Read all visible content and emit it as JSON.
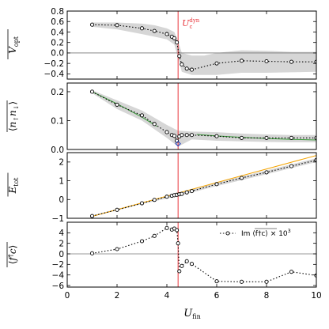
{
  "chart_data": [
    {
      "type": "line",
      "panel": "V_opt",
      "ylabel": "V_opt",
      "ylim": [
        -0.5,
        0.8
      ],
      "yticks": [
        -0.4,
        -0.2,
        0.0,
        0.2,
        0.4,
        0.6,
        0.8
      ],
      "hline": 0.0,
      "x": [
        1,
        2,
        3,
        3.5,
        4.0,
        4.2,
        4.3,
        4.4,
        4.5,
        4.6,
        4.8,
        5.0,
        6.0,
        7.0,
        8.0,
        9.0,
        10.0
      ],
      "values": [
        0.54,
        0.53,
        0.47,
        0.42,
        0.36,
        0.31,
        0.28,
        0.2,
        -0.06,
        -0.22,
        -0.3,
        -0.32,
        -0.2,
        -0.15,
        -0.16,
        -0.17,
        -0.17
      ],
      "band_x": [
        1,
        2,
        3,
        3.5,
        4.0,
        4.3,
        4.45,
        4.6,
        5.0,
        5.5,
        6.0,
        7.0,
        8.0,
        9.0,
        10.0
      ],
      "band_upper": [
        0.58,
        0.58,
        0.56,
        0.53,
        0.47,
        0.4,
        0.22,
        0.0,
        -0.05,
        -0.05,
        0.0,
        0.05,
        0.04,
        0.02,
        0.02
      ],
      "band_lower": [
        0.5,
        0.45,
        0.36,
        0.31,
        0.26,
        0.16,
        -0.1,
        -0.36,
        -0.42,
        -0.42,
        -0.42,
        -0.38,
        -0.38,
        -0.37,
        -0.36
      ]
    },
    {
      "type": "line",
      "panel": "double_occupancy",
      "ylabel": "⟨n↑n↓⟩",
      "ylim": [
        0.0,
        0.23
      ],
      "yticks": [
        0.0,
        0.1,
        0.2
      ],
      "x": [
        1,
        2,
        3,
        3.5,
        4.0,
        4.2,
        4.3,
        4.4,
        4.5,
        4.6,
        4.8,
        5.0,
        6.0,
        7.0,
        8.0,
        9.0,
        10.0
      ],
      "values": [
        0.2,
        0.155,
        0.118,
        0.088,
        0.06,
        0.05,
        0.047,
        0.03,
        0.045,
        0.05,
        0.05,
        0.05,
        0.046,
        0.04,
        0.04,
        0.04,
        0.04
      ],
      "band_x": [
        1,
        2,
        3,
        4.0,
        4.45,
        5.0,
        6.0,
        7.0,
        8.0,
        9.0,
        10.0
      ],
      "band_upper": [
        0.205,
        0.17,
        0.135,
        0.085,
        0.065,
        0.062,
        0.06,
        0.055,
        0.052,
        0.05,
        0.05
      ],
      "band_lower": [
        0.195,
        0.14,
        0.1,
        0.04,
        0.01,
        0.035,
        0.03,
        0.028,
        0.026,
        0.025,
        0.025
      ],
      "green_segments": [
        {
          "x": [
            1,
            2,
            3,
            3.6
          ],
          "y": [
            0.2,
            0.158,
            0.112,
            0.08
          ]
        },
        {
          "x": [
            5.2,
            6,
            7,
            8,
            9,
            10
          ],
          "y": [
            0.052,
            0.047,
            0.042,
            0.038,
            0.035,
            0.033
          ]
        }
      ],
      "diamond": {
        "x": 4.45,
        "y": 0.02,
        "color": "#1f3fbf"
      }
    },
    {
      "type": "line",
      "panel": "E_tot",
      "ylabel": "E_tot",
      "ylim": [
        -1.0,
        2.5
      ],
      "yticks": [
        -1,
        0,
        1,
        2
      ],
      "x": [
        1,
        2,
        3,
        3.5,
        4.0,
        4.2,
        4.3,
        4.4,
        4.5,
        4.6,
        4.8,
        5.0,
        6.0,
        7.0,
        8.0,
        9.0,
        10.0
      ],
      "values": [
        -0.88,
        -0.55,
        -0.2,
        -0.02,
        0.15,
        0.2,
        0.23,
        0.25,
        0.28,
        0.3,
        0.38,
        0.45,
        0.82,
        1.15,
        1.45,
        1.78,
        2.1
      ],
      "band_x": [
        1,
        3,
        4.5,
        6,
        8,
        10
      ],
      "band_upper": [
        -0.85,
        -0.16,
        0.34,
        0.9,
        1.55,
        2.2
      ],
      "band_lower": [
        -0.91,
        -0.24,
        0.2,
        0.72,
        1.35,
        2.0
      ],
      "orange_line": {
        "x": [
          1,
          10
        ],
        "y": [
          -0.9,
          2.35
        ],
        "color": "#f4a300"
      }
    },
    {
      "type": "line",
      "panel": "im_fc",
      "ylabel": "⟨f†c⟩",
      "ylim": [
        -6.3,
        6.0
      ],
      "yticks": [
        -6,
        -4,
        -2,
        0,
        2,
        4
      ],
      "hline": 0.0,
      "legend": {
        "label_parts": [
          "Im ",
          "⟨f†c⟩",
          " × 10",
          "3"
        ],
        "position": "upper right"
      },
      "x": [
        1,
        2,
        3,
        3.5,
        4.0,
        4.2,
        4.3,
        4.4,
        4.45,
        4.5,
        4.6,
        4.8,
        5.0,
        6.0,
        7.0,
        8.0,
        9.0,
        10.0
      ],
      "values": [
        0.1,
        0.9,
        2.4,
        3.4,
        4.9,
        4.6,
        4.8,
        4.5,
        2.0,
        -3.3,
        -2.3,
        -1.4,
        -1.9,
        -5.2,
        -5.3,
        -5.3,
        -3.4,
        -4.1
      ]
    }
  ],
  "x_axis": {
    "label": "U_fin",
    "xlim": [
      0,
      10
    ],
    "xticks": [
      0,
      2,
      4,
      6,
      8,
      10
    ]
  },
  "critical_line": {
    "x": 4.45,
    "label": "U_c^dyn",
    "color": "#e8343a"
  }
}
